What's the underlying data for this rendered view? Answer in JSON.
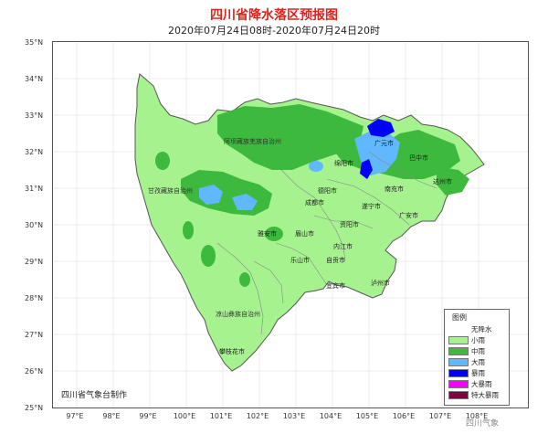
{
  "header": {
    "title": "四川省降水落区预报图",
    "subtitle": "2020年07月24日08时-2020年07月24日20时"
  },
  "axes": {
    "lat_labels": [
      "35°N",
      "34°N",
      "33°N",
      "32°N",
      "31°N",
      "30°N",
      "29°N",
      "28°N",
      "27°N",
      "26°N",
      "25°N"
    ],
    "lon_labels": [
      "97°E",
      "98°E",
      "99°E",
      "100°E",
      "101°E",
      "102°E",
      "103°E",
      "104°E",
      "105°E",
      "106°E",
      "107°E",
      "108°E"
    ]
  },
  "regions": {
    "aba": "阿坝藏族羌族自治州",
    "ganzi": "甘孜藏族自治州",
    "liangshan": "凉山彝族自治州"
  },
  "cities": {
    "guangyuan": "广元市",
    "mianyang": "绵阳市",
    "bazhong": "巴中市",
    "dazhou": "达州市",
    "nanchong": "南充市",
    "deyang": "德阳市",
    "chengdu": "成都市",
    "suining": "遂宁市",
    "guangan": "广安市",
    "ziyang": "资阳市",
    "yaan": "雅安市",
    "meishan": "眉山市",
    "neijiang": "内江市",
    "leshan": "乐山市",
    "zigong": "自贡市",
    "yibin": "宜宾市",
    "luzhou": "泸州市",
    "panzhihua": "攀枝花市"
  },
  "legend": {
    "title": "图例",
    "items": [
      {
        "label": "无降水",
        "color": "#ffffff"
      },
      {
        "label": "小雨",
        "color": "#a6f28f"
      },
      {
        "label": "中雨",
        "color": "#3dba3d"
      },
      {
        "label": "大雨",
        "color": "#61b8ff"
      },
      {
        "label": "暴雨",
        "color": "#0000fe"
      },
      {
        "label": "大暴雨",
        "color": "#fa00fa"
      },
      {
        "label": "特大暴雨",
        "color": "#800040"
      }
    ]
  },
  "footer": "四川省气象台制作",
  "watermark": "四川气象",
  "colors": {
    "title": "#d8261c",
    "light_rain": "#a6f28f",
    "moderate_rain": "#3dba3d",
    "heavy_rain": "#61b8ff",
    "rainstorm": "#0000fe"
  }
}
